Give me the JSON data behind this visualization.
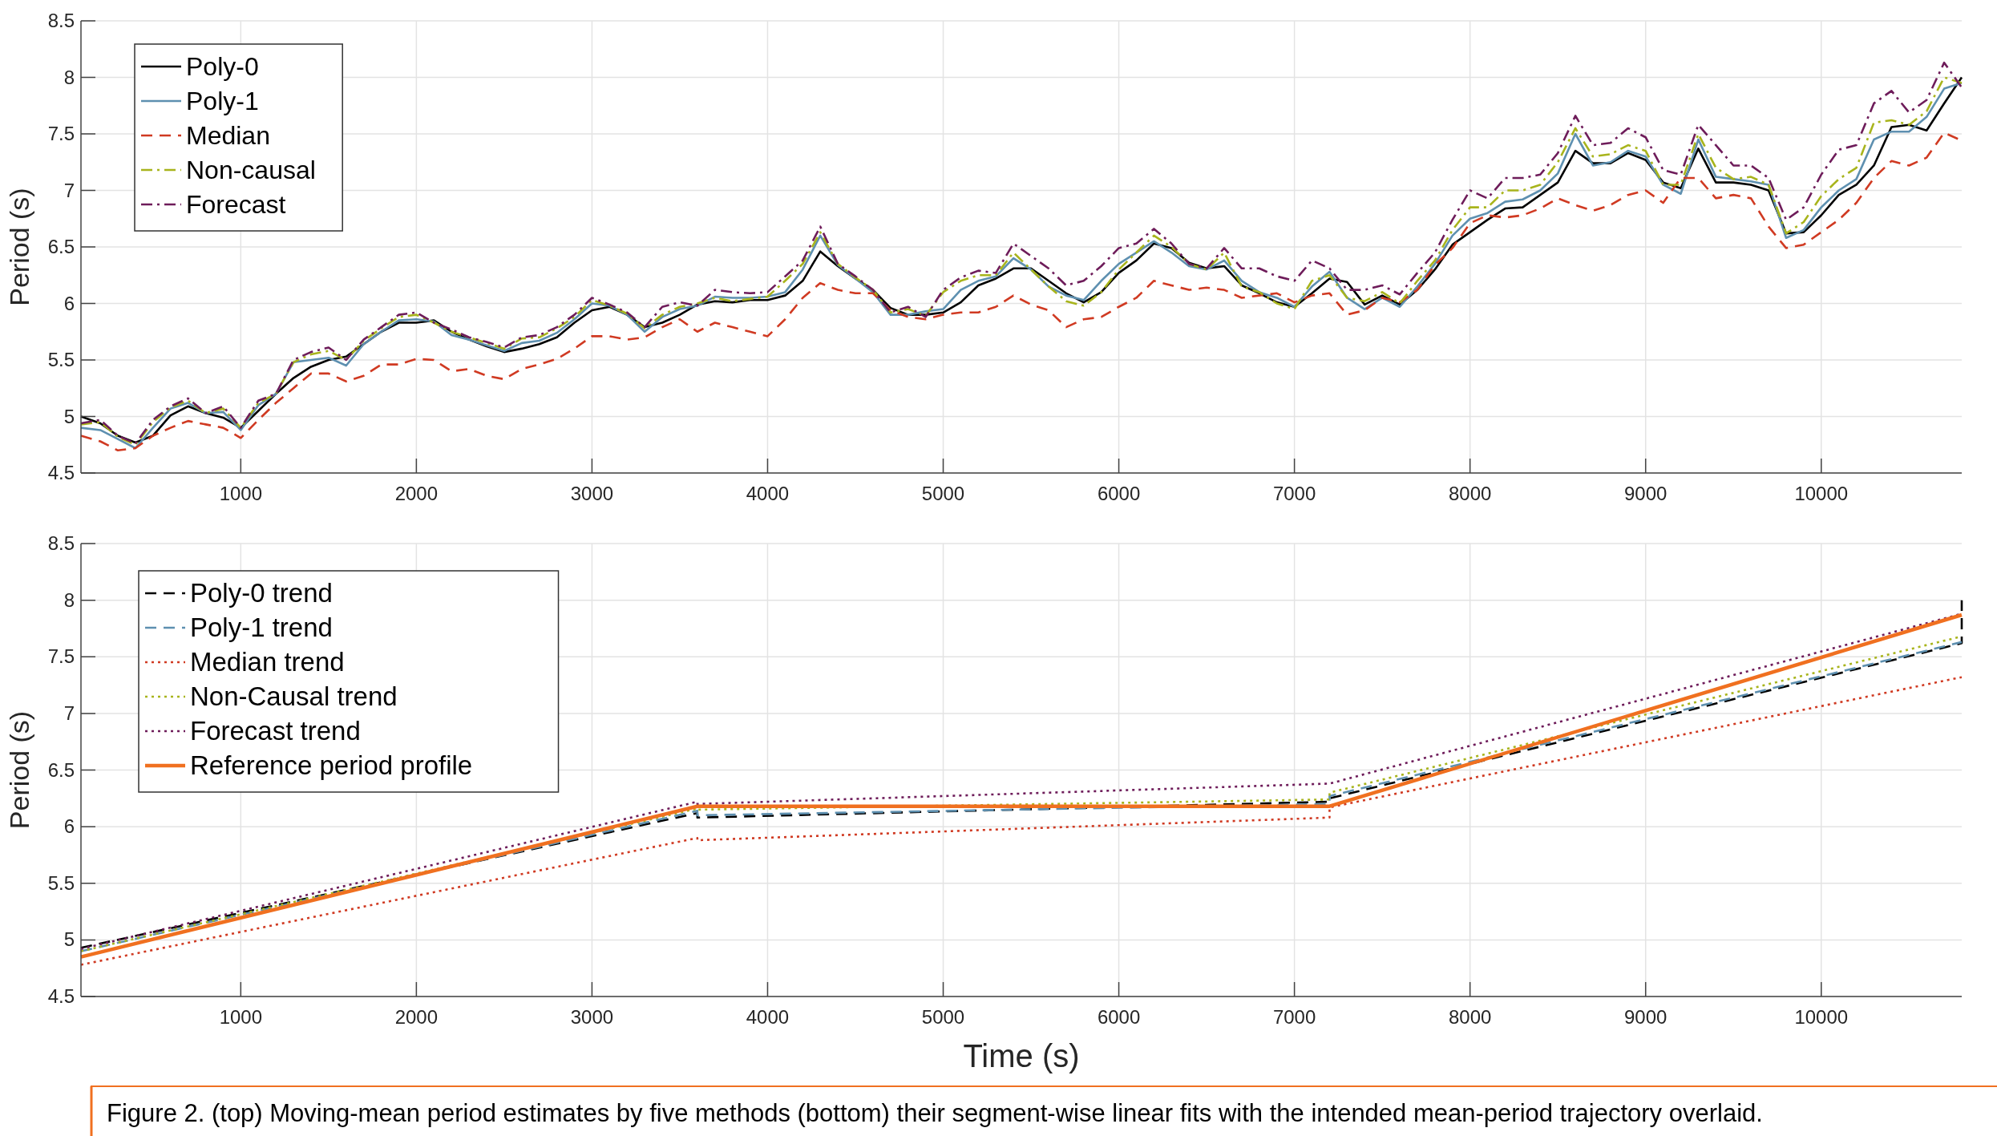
{
  "chart_data": [
    {
      "type": "line",
      "ylabel": "Period (s)",
      "xlim": [
        90,
        10800
      ],
      "xticks": [
        1000,
        2000,
        3000,
        4000,
        5000,
        6000,
        7000,
        8000,
        9000,
        10000
      ],
      "ylim": [
        4.5,
        8.5
      ],
      "yticks": [
        4.5,
        5,
        5.5,
        6,
        6.5,
        7,
        7.5,
        8,
        8.5
      ],
      "grid": true,
      "legend": "top left",
      "x": [
        90,
        200,
        300,
        400,
        500,
        600,
        700,
        800,
        900,
        1000,
        1100,
        1200,
        1300,
        1400,
        1500,
        1600,
        1700,
        1800,
        1900,
        2000,
        2100,
        2200,
        2300,
        2400,
        2500,
        2600,
        2700,
        2800,
        2900,
        3000,
        3100,
        3200,
        3300,
        3400,
        3500,
        3600,
        3700,
        3800,
        3900,
        4000,
        4100,
        4200,
        4300,
        4400,
        4500,
        4600,
        4700,
        4800,
        4900,
        5000,
        5100,
        5200,
        5300,
        5400,
        5500,
        5600,
        5700,
        5800,
        5900,
        6000,
        6100,
        6200,
        6300,
        6400,
        6500,
        6600,
        6700,
        6800,
        6900,
        7000,
        7100,
        7200,
        7300,
        7400,
        7500,
        7600,
        7700,
        7800,
        7900,
        8000,
        8100,
        8200,
        8300,
        8400,
        8500,
        8600,
        8700,
        8800,
        8900,
        9000,
        9100,
        9200,
        9300,
        9400,
        9500,
        9600,
        9700,
        9800,
        9900,
        10000,
        10100,
        10200,
        10300,
        10400,
        10500,
        10600,
        10700,
        10800
      ],
      "series": [
        {
          "name": "Poly-0",
          "color": "#000000",
          "line_style": "solid",
          "values": [
            5.0,
            4.94,
            4.83,
            4.77,
            4.83,
            5.01,
            5.09,
            5.03,
            4.99,
            4.9,
            5.05,
            5.2,
            5.34,
            5.44,
            5.5,
            5.53,
            5.64,
            5.75,
            5.83,
            5.83,
            5.85,
            5.75,
            5.68,
            5.62,
            5.57,
            5.6,
            5.64,
            5.7,
            5.83,
            5.94,
            5.97,
            5.9,
            5.79,
            5.83,
            5.9,
            5.99,
            6.02,
            6.01,
            6.03,
            6.03,
            6.07,
            6.2,
            6.46,
            6.33,
            6.22,
            6.12,
            5.96,
            5.9,
            5.9,
            5.92,
            6.01,
            6.16,
            6.22,
            6.31,
            6.31,
            6.2,
            6.09,
            6.01,
            6.1,
            6.27,
            6.38,
            6.53,
            6.49,
            6.36,
            6.31,
            6.33,
            6.16,
            6.09,
            6.01,
            5.97,
            6.09,
            6.22,
            6.19,
            5.99,
            6.07,
            5.99,
            6.12,
            6.3,
            6.52,
            6.63,
            6.74,
            6.84,
            6.85,
            6.96,
            7.07,
            7.35,
            7.24,
            7.24,
            7.33,
            7.27,
            7.07,
            7.02,
            7.37,
            7.07,
            7.07,
            7.05,
            7.0,
            6.62,
            6.63,
            6.78,
            6.96,
            7.05,
            7.22,
            7.56,
            7.58,
            7.53,
            7.77,
            8.0
          ]
        },
        {
          "name": "Poly-1",
          "color": "#5e90b0",
          "line_style": "solid",
          "values": [
            4.9,
            4.88,
            4.8,
            4.72,
            4.9,
            5.07,
            5.12,
            5.03,
            5.04,
            4.88,
            5.1,
            5.2,
            5.48,
            5.5,
            5.52,
            5.45,
            5.64,
            5.75,
            5.85,
            5.86,
            5.84,
            5.72,
            5.68,
            5.63,
            5.58,
            5.65,
            5.67,
            5.74,
            5.86,
            6.0,
            5.98,
            5.9,
            5.75,
            5.88,
            5.95,
            5.98,
            6.06,
            6.05,
            6.05,
            6.06,
            6.1,
            6.3,
            6.6,
            6.34,
            6.22,
            6.1,
            5.9,
            5.9,
            5.93,
            5.95,
            6.12,
            6.2,
            6.24,
            6.4,
            6.3,
            6.15,
            6.07,
            6.03,
            6.2,
            6.35,
            6.45,
            6.55,
            6.45,
            6.33,
            6.3,
            6.38,
            6.2,
            6.1,
            6.05,
            5.97,
            6.15,
            6.28,
            6.05,
            5.95,
            6.05,
            5.97,
            6.15,
            6.35,
            6.6,
            6.75,
            6.8,
            6.9,
            6.92,
            7.0,
            7.15,
            7.5,
            7.22,
            7.25,
            7.35,
            7.3,
            7.05,
            6.97,
            7.45,
            7.12,
            7.1,
            7.08,
            7.05,
            6.58,
            6.65,
            6.85,
            7.0,
            7.1,
            7.45,
            7.52,
            7.52,
            7.65,
            7.9,
            7.95
          ]
        },
        {
          "name": "Median",
          "color": "#d03a22",
          "line_style": "dashed",
          "values": [
            4.83,
            4.78,
            4.7,
            4.72,
            4.83,
            4.9,
            4.96,
            4.93,
            4.9,
            4.81,
            4.97,
            5.12,
            5.25,
            5.38,
            5.38,
            5.31,
            5.36,
            5.46,
            5.46,
            5.51,
            5.5,
            5.4,
            5.42,
            5.36,
            5.33,
            5.42,
            5.46,
            5.51,
            5.6,
            5.71,
            5.71,
            5.68,
            5.7,
            5.79,
            5.86,
            5.75,
            5.83,
            5.79,
            5.75,
            5.71,
            5.86,
            6.05,
            6.18,
            6.12,
            6.09,
            6.09,
            5.94,
            5.88,
            5.86,
            5.9,
            5.92,
            5.92,
            5.97,
            6.07,
            5.99,
            5.94,
            5.79,
            5.86,
            5.88,
            5.97,
            6.05,
            6.2,
            6.16,
            6.12,
            6.14,
            6.12,
            6.05,
            6.07,
            6.09,
            6.01,
            6.07,
            6.09,
            5.9,
            5.94,
            6.05,
            6.01,
            6.12,
            6.34,
            6.49,
            6.71,
            6.78,
            6.76,
            6.78,
            6.84,
            6.93,
            6.87,
            6.82,
            6.87,
            6.96,
            7.0,
            6.89,
            7.11,
            7.11,
            6.93,
            6.96,
            6.93,
            6.68,
            6.49,
            6.52,
            6.63,
            6.74,
            6.89,
            7.11,
            7.26,
            7.22,
            7.29,
            7.51,
            7.44
          ]
        },
        {
          "name": "Non-causal",
          "color": "#a8b41c",
          "line_style": "dashdot",
          "values": [
            4.93,
            4.95,
            4.82,
            4.75,
            4.95,
            5.08,
            5.14,
            5.03,
            5.07,
            4.9,
            5.12,
            5.2,
            5.48,
            5.55,
            5.58,
            5.5,
            5.67,
            5.78,
            5.88,
            5.9,
            5.83,
            5.75,
            5.7,
            5.65,
            5.6,
            5.69,
            5.7,
            5.78,
            5.88,
            6.03,
            5.98,
            5.91,
            5.78,
            5.9,
            5.97,
            6.0,
            6.05,
            6.02,
            6.04,
            6.06,
            6.2,
            6.35,
            6.63,
            6.35,
            6.23,
            6.12,
            5.92,
            5.95,
            5.89,
            6.1,
            6.2,
            6.25,
            6.25,
            6.45,
            6.3,
            6.15,
            6.02,
            5.98,
            6.1,
            6.3,
            6.45,
            6.6,
            6.5,
            6.35,
            6.3,
            6.45,
            6.15,
            6.1,
            6.0,
            5.95,
            6.2,
            6.25,
            6.05,
            6.02,
            6.1,
            6.0,
            6.2,
            6.38,
            6.65,
            6.85,
            6.85,
            7.0,
            7.0,
            7.05,
            7.25,
            7.55,
            7.3,
            7.32,
            7.4,
            7.35,
            7.05,
            7.05,
            7.5,
            7.2,
            7.1,
            7.12,
            7.05,
            6.62,
            6.72,
            6.95,
            7.1,
            7.2,
            7.6,
            7.62,
            7.58,
            7.7,
            8.0,
            7.95
          ]
        },
        {
          "name": "Forecast",
          "color": "#6e1c5a",
          "line_style": "dashdot",
          "values": [
            4.94,
            4.97,
            4.83,
            4.76,
            4.97,
            5.09,
            5.16,
            5.03,
            5.09,
            4.9,
            5.14,
            5.2,
            5.5,
            5.57,
            5.61,
            5.5,
            5.68,
            5.79,
            5.9,
            5.92,
            5.83,
            5.77,
            5.7,
            5.66,
            5.61,
            5.7,
            5.72,
            5.79,
            5.9,
            6.05,
            5.99,
            5.92,
            5.79,
            5.97,
            6.01,
            5.98,
            6.12,
            6.1,
            6.09,
            6.1,
            6.24,
            6.38,
            6.68,
            6.35,
            6.24,
            6.12,
            5.92,
            5.97,
            5.88,
            6.12,
            6.23,
            6.29,
            6.27,
            6.53,
            6.42,
            6.31,
            6.16,
            6.2,
            6.33,
            6.49,
            6.53,
            6.66,
            6.53,
            6.35,
            6.31,
            6.49,
            6.31,
            6.31,
            6.24,
            6.2,
            6.38,
            6.31,
            6.12,
            6.12,
            6.16,
            6.08,
            6.27,
            6.45,
            6.74,
            7.0,
            6.93,
            7.11,
            7.11,
            7.14,
            7.33,
            7.66,
            7.4,
            7.42,
            7.55,
            7.47,
            7.18,
            7.14,
            7.58,
            7.4,
            7.22,
            7.22,
            7.11,
            6.74,
            6.85,
            7.14,
            7.36,
            7.4,
            7.77,
            7.88,
            7.69,
            7.8,
            8.13,
            7.91
          ]
        }
      ]
    },
    {
      "type": "line",
      "xlabel": "Time (s)",
      "ylabel": "Period (s)",
      "xlim": [
        90,
        10800
      ],
      "xticks": [
        1000,
        2000,
        3000,
        4000,
        5000,
        6000,
        7000,
        8000,
        9000,
        10000
      ],
      "ylim": [
        4.5,
        8.5
      ],
      "yticks": [
        4.5,
        5,
        5.5,
        6,
        6.5,
        7,
        7.5,
        8,
        8.5
      ],
      "grid": true,
      "legend": "top left",
      "annotations": [
        "Figure 2. (top) Moving-mean period estimates by five methods (bottom) their segment-wise linear fits with the intended mean-period trajectory overlaid."
      ],
      "series": [
        {
          "name": "Poly-0 trend",
          "color": "#000000",
          "line_style": "dashed",
          "x": [
            90,
            3600,
            3600,
            7200,
            7200,
            10800,
            10800
          ],
          "values": [
            4.93,
            6.12,
            6.08,
            6.22,
            6.25,
            7.62,
            8.0
          ]
        },
        {
          "name": "Poly-1 trend",
          "color": "#5e90b0",
          "line_style": "dashed",
          "x": [
            90,
            3600,
            3600,
            7200,
            7200,
            10800
          ],
          "values": [
            4.9,
            6.14,
            6.1,
            6.2,
            6.27,
            7.63
          ]
        },
        {
          "name": "Median trend",
          "color": "#d03a22",
          "line_style": "dotted",
          "x": [
            90,
            3600,
            3600,
            7200,
            7200,
            10800
          ],
          "values": [
            4.78,
            5.9,
            5.88,
            6.08,
            6.17,
            7.32
          ]
        },
        {
          "name": "Non-Causal trend",
          "color": "#a8b41c",
          "line_style": "dotted",
          "x": [
            90,
            3600,
            3600,
            7200,
            7200,
            10800
          ],
          "values": [
            4.9,
            6.16,
            6.15,
            6.24,
            6.3,
            7.68
          ]
        },
        {
          "name": "Forecast trend",
          "color": "#6e1c5a",
          "line_style": "dotted",
          "x": [
            90,
            3600,
            3600,
            7200,
            7200,
            10800
          ],
          "values": [
            4.92,
            6.22,
            6.2,
            6.38,
            6.38,
            7.88
          ]
        },
        {
          "name": "Reference period profile",
          "color": "#f07020",
          "line_style": "solid",
          "x": [
            90,
            3600,
            7200,
            10800
          ],
          "values": [
            4.85,
            6.18,
            6.18,
            7.87
          ]
        }
      ]
    }
  ]
}
